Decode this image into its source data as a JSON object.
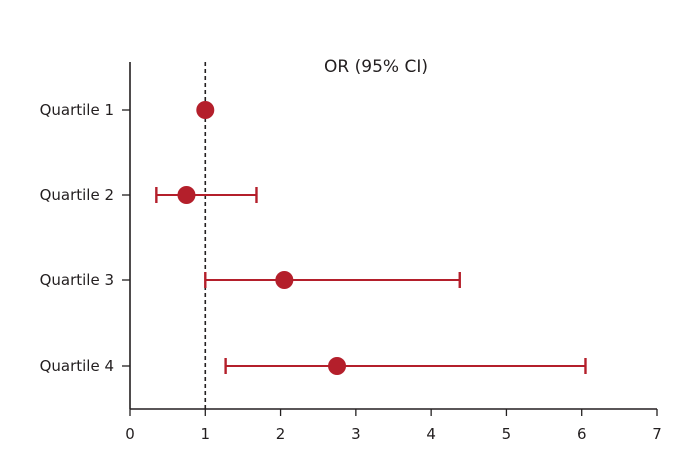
{
  "chart_data": {
    "type": "forest",
    "title": "OR (95% CI)",
    "xlabel": "",
    "ylabel": "",
    "xlim": [
      0,
      7
    ],
    "xticks": [
      0,
      1,
      2,
      3,
      4,
      5,
      6,
      7
    ],
    "reference_line": 1,
    "reference_line_style": "dashed",
    "grid": false,
    "legend": "none",
    "categories": [
      "Quartile 1",
      "Quartile 2",
      "Quartile 3",
      "Quartile 4"
    ],
    "series": [
      {
        "color": "#b41f2b",
        "points": [
          {
            "or": 1.0,
            "ci_low": null,
            "ci_high": null
          },
          {
            "or": 0.75,
            "ci_low": 0.35,
            "ci_high": 1.68
          },
          {
            "or": 2.05,
            "ci_low": 1.0,
            "ci_high": 4.38
          },
          {
            "or": 2.75,
            "ci_low": 1.27,
            "ci_high": 6.05
          }
        ]
      }
    ]
  }
}
